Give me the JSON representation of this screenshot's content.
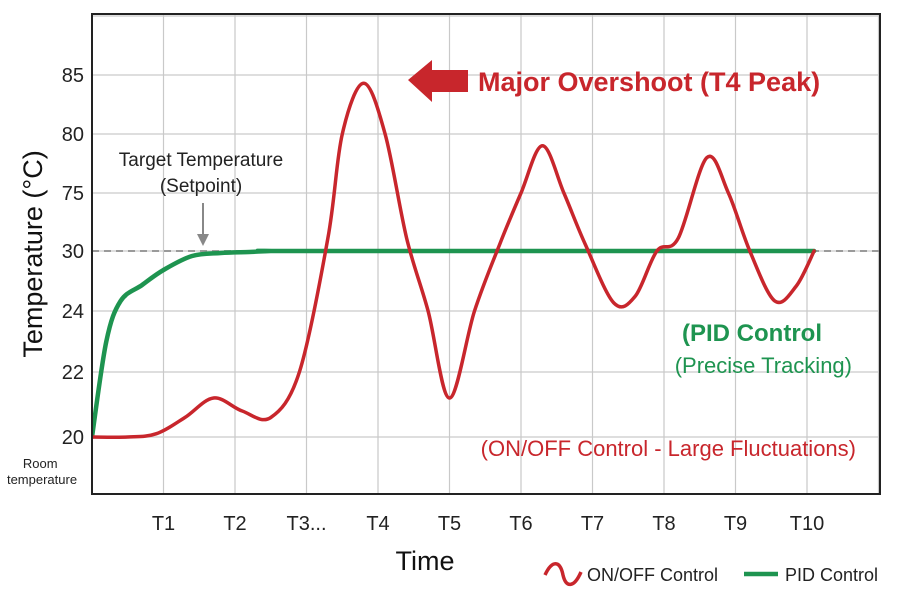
{
  "chart_data": {
    "type": "line",
    "xlabel": "Time",
    "ylabel": "Temperature (°C)",
    "x_ticks": [
      "T1",
      "T2",
      "T3...",
      "T4",
      "T5",
      "T6",
      "T7",
      "T8",
      "T9",
      "T10"
    ],
    "y_ticks": [
      "20",
      "22",
      "24",
      "30",
      "75",
      "80",
      "85"
    ],
    "y_start_note": "Room\ntemperature",
    "grid": true,
    "legend_position": "bottom-right",
    "setpoint": {
      "value": 30,
      "label_line1": "Target Temperature",
      "label_line2": "(Setpoint)"
    },
    "annotations": {
      "overshoot": "Major Overshoot (T4 Peak)",
      "pid_title": "(PID Control",
      "pid_subtitle": "(Precise Tracking)",
      "onoff_note": "(ON/OFF Control - Large Fluctuations)"
    },
    "series": [
      {
        "name": "ON/OFF Control",
        "color": "#c8262c",
        "points": [
          [
            0,
            20
          ],
          [
            0.5,
            20
          ],
          [
            0.9,
            20.1
          ],
          [
            1.3,
            20.6
          ],
          [
            1.7,
            21.2
          ],
          [
            2.1,
            20.8
          ],
          [
            2.5,
            20.6
          ],
          [
            2.9,
            22
          ],
          [
            3.3,
            40
          ],
          [
            3.5,
            80
          ],
          [
            3.8,
            84.3
          ],
          [
            4.1,
            80
          ],
          [
            4.4,
            40
          ],
          [
            4.7,
            24
          ],
          [
            5.0,
            21.2
          ],
          [
            5.35,
            24
          ],
          [
            5.7,
            35
          ],
          [
            6.0,
            75
          ],
          [
            6.3,
            79
          ],
          [
            6.6,
            75
          ],
          [
            6.9,
            35
          ],
          [
            7.3,
            24.8
          ],
          [
            7.6,
            25.5
          ],
          [
            7.9,
            30
          ],
          [
            8.2,
            40
          ],
          [
            8.6,
            78
          ],
          [
            8.9,
            75
          ],
          [
            9.2,
            30
          ],
          [
            9.55,
            25
          ],
          [
            9.85,
            26.5
          ],
          [
            10.1,
            30
          ]
        ]
      },
      {
        "name": "PID Control",
        "color": "#1e9450",
        "points": [
          [
            0,
            20
          ],
          [
            0.2,
            23
          ],
          [
            0.4,
            25
          ],
          [
            0.7,
            26.6
          ],
          [
            1.0,
            28.1
          ],
          [
            1.4,
            29.5
          ],
          [
            1.8,
            29.8
          ],
          [
            2.2,
            29.9
          ],
          [
            2.5,
            30
          ],
          [
            3.0,
            30
          ],
          [
            10.1,
            30
          ]
        ]
      }
    ]
  }
}
